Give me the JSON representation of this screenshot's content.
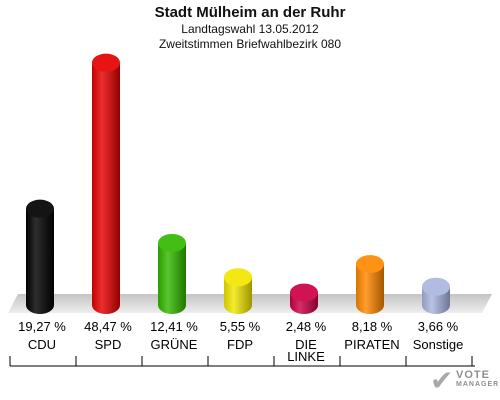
{
  "header": {
    "title": "Stadt Mülheim an der Ruhr",
    "subtitle1": "Landtagswahl 13.05.2012",
    "subtitle2": "Zweitstimmen Briefwahlbezirk 080"
  },
  "logo": {
    "line1": "VOTE",
    "line2": "MANAGER"
  },
  "chart_data": {
    "type": "bar",
    "title": "Stadt Mülheim an der Ruhr",
    "subtitles": [
      "Landtagswahl 13.05.2012",
      "Zweitstimmen Briefwahlbezirk 080"
    ],
    "categories": [
      "CDU",
      "SPD",
      "GRÜNE",
      "FDP",
      "DIE LINKE",
      "PIRATEN",
      "Sonstige"
    ],
    "values": [
      19.27,
      48.47,
      12.41,
      5.55,
      2.48,
      8.18,
      3.66
    ],
    "value_labels": [
      "19,27 %",
      "48,47 %",
      "12,41 %",
      "5,55 %",
      "2,48 %",
      "8,18 %",
      "3,66 %"
    ],
    "colors": [
      "#000000",
      "#e50000",
      "#33b800",
      "#f2e600",
      "#cc0044",
      "#ff8800",
      "#a9b6e0"
    ],
    "grid": false,
    "legend": "none"
  }
}
